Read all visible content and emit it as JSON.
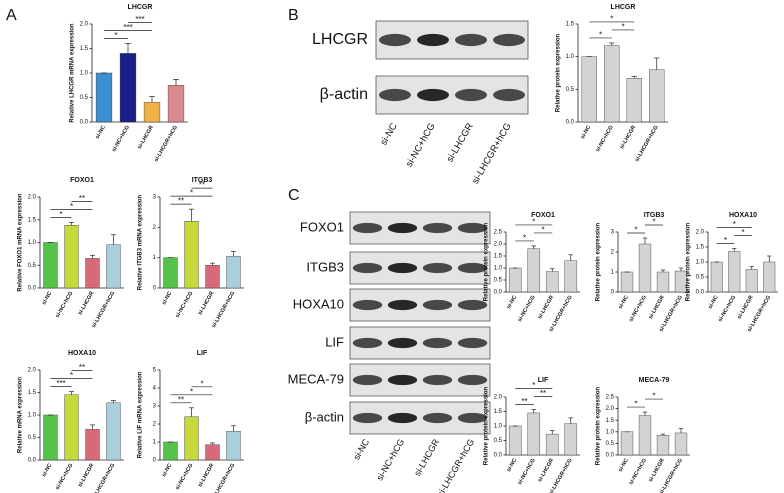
{
  "panel_labels": [
    "A",
    "B",
    "C"
  ],
  "blots": [
    {
      "rows": [
        "LHCGR",
        "β-actin"
      ],
      "lanes": [
        "si-NC",
        "si-NC+hCG",
        "si-LHCGR",
        "si-LHCGR+hCG"
      ]
    },
    {
      "rows": [
        "FOXO1",
        "ITGB3",
        "HOXA10",
        "LIF",
        "MECA-79",
        "β-actin"
      ],
      "lanes": [
        "si-NC",
        "si-NC+hCG",
        "si-LHCGR",
        "si-LHCGR+hCG"
      ]
    }
  ],
  "chart_data": [
    {
      "type": "bar",
      "title": "LHCGR",
      "ylabel": "Relative LHCGR mRNA expression",
      "categories": [
        "si-NC",
        "si-NC+hCG",
        "si-LHCGR",
        "si-LHCGR+hCG"
      ],
      "values": [
        1.0,
        1.4,
        0.4,
        0.75
      ],
      "errors": [
        0,
        0.2,
        0.12,
        0.12
      ],
      "colors": [
        "#3a8fd0",
        "#1c1f8a",
        "#f0b34a",
        "#d98a8e"
      ],
      "ylim": [
        0,
        2
      ],
      "yticks": [
        {
          "value": 0,
          "label": "0.0"
        },
        0.5,
        {
          "value": 1,
          "label": "1.0"
        },
        1.5,
        {
          "value": 2,
          "label": "2.0"
        }
      ],
      "brackets": [
        {
          "label": "*",
          "pair": [
            "si-NC",
            "si-NC+hCG"
          ]
        },
        {
          "label": "***",
          "pair": [
            "si-NC",
            "si-LHCGR"
          ]
        },
        {
          "label": "***",
          "pair": [
            "si-NC+hCG",
            "si-LHCGR"
          ]
        }
      ]
    },
    {
      "type": "bar",
      "title": "FOXO1",
      "ylabel": "Relative FOXO1 mRNA expression",
      "categories": [
        "si-NC",
        "si-NC+hCG",
        "si-LHCGR",
        "si-LHCGR+hCG"
      ],
      "values": [
        1.0,
        1.38,
        0.65,
        0.95
      ],
      "errors": [
        0,
        0.06,
        0.07,
        0.22
      ],
      "colors": [
        "#57c24a",
        "#c6d93a",
        "#d76a78",
        "#a9cfdc"
      ],
      "ylim": [
        0,
        2
      ],
      "yticks": [
        {
          "value": 0,
          "label": "0.0"
        },
        0.5,
        {
          "value": 1,
          "label": "1.0"
        },
        1.5,
        {
          "value": 2,
          "label": "2.0"
        }
      ],
      "brackets": [
        {
          "label": "*",
          "pair": [
            "si-NC",
            "si-NC+hCG"
          ]
        },
        {
          "label": "*",
          "pair": [
            "si-NC",
            "si-LHCGR"
          ]
        },
        {
          "label": "**",
          "pair": [
            "si-NC+hCG",
            "si-LHCGR"
          ]
        }
      ]
    },
    {
      "type": "bar",
      "title": "ITGB3",
      "ylabel": "Relative ITGB3 mRNA expression",
      "categories": [
        "si-NC",
        "si-NC+hCG",
        "si-LHCGR",
        "si-LHCGR+hCG"
      ],
      "values": [
        1.0,
        2.2,
        0.75,
        1.05
      ],
      "errors": [
        0,
        0.4,
        0.07,
        0.15
      ],
      "colors": [
        "#57c24a",
        "#c6d93a",
        "#d76a78",
        "#a9cfdc"
      ],
      "ylim": [
        0,
        3
      ],
      "yticks": [
        0,
        1,
        2,
        3
      ],
      "brackets": [
        {
          "label": "**",
          "pair": [
            "si-NC",
            "si-NC+hCG"
          ]
        },
        {
          "label": "*",
          "pair": [
            "si-NC",
            "si-LHCGR"
          ]
        },
        {
          "label": "**",
          "pair": [
            "si-NC+hCG",
            "si-LHCGR"
          ]
        }
      ]
    },
    {
      "type": "bar",
      "title": "HOXA10",
      "ylabel": "Relative mRNA expression",
      "categories": [
        "si-NC",
        "si-NC+hCG",
        "si-LHCGR",
        "si-LHCGR+hCG"
      ],
      "values": [
        1.0,
        1.45,
        0.68,
        1.27
      ],
      "errors": [
        0,
        0.07,
        0.1,
        0.05
      ],
      "colors": [
        "#57c24a",
        "#c6d93a",
        "#d76a78",
        "#a9cfdc"
      ],
      "ylim": [
        0,
        2
      ],
      "yticks": [
        {
          "value": 0,
          "label": "0.0"
        },
        0.5,
        {
          "value": 1,
          "label": "1.0"
        },
        1.5,
        {
          "value": 2,
          "label": "2.0"
        }
      ],
      "brackets": [
        {
          "label": "***",
          "pair": [
            "si-NC",
            "si-NC+hCG"
          ]
        },
        {
          "label": "*",
          "pair": [
            "si-NC",
            "si-LHCGR"
          ]
        },
        {
          "label": "**",
          "pair": [
            "si-NC+hCG",
            "si-LHCGR"
          ]
        }
      ]
    },
    {
      "type": "bar",
      "title": "LIF",
      "ylabel": "Relative LIF mRNA expression",
      "categories": [
        "si-NC",
        "si-NC+hCG",
        "si-LHCGR",
        "si-LHCGR+hCG"
      ],
      "values": [
        1.0,
        2.4,
        0.85,
        1.6
      ],
      "errors": [
        0,
        0.5,
        0.1,
        0.3
      ],
      "colors": [
        "#57c24a",
        "#c6d93a",
        "#d76a78",
        "#a9cfdc"
      ],
      "ylim": [
        0,
        5
      ],
      "yticks": [
        0,
        1,
        2,
        3,
        4,
        5
      ],
      "brackets": [
        {
          "label": "**",
          "pair": [
            "si-NC",
            "si-NC+hCG"
          ]
        },
        {
          "label": "*",
          "pair": [
            "si-NC",
            "si-LHCGR"
          ]
        },
        {
          "label": "*",
          "pair": [
            "si-NC+hCG",
            "si-LHCGR"
          ]
        }
      ]
    },
    {
      "type": "bar",
      "title": "LHCGR",
      "ylabel": "Relative protein expression",
      "categories": [
        "si-NC",
        "si-NC+hCG",
        "si-LHCGR",
        "si-LHCGR+hCG"
      ],
      "values": [
        1.0,
        1.17,
        0.67,
        0.8
      ],
      "errors": [
        0,
        0.04,
        0.03,
        0.18
      ],
      "colors": [
        "#d3d3d3",
        "#d3d3d3",
        "#d3d3d3",
        "#d3d3d3"
      ],
      "ylim": [
        0,
        1.5
      ],
      "yticks": [
        {
          "value": 0,
          "label": "0.0"
        },
        0.5,
        {
          "value": 1,
          "label": "1.0"
        },
        1.5
      ],
      "brackets": [
        {
          "label": "*",
          "pair": [
            "si-NC",
            "si-NC+hCG"
          ]
        },
        {
          "label": "*",
          "pair": [
            "si-NC+hCG",
            "si-LHCGR"
          ]
        },
        {
          "label": "*",
          "pair": [
            "si-NC",
            "si-LHCGR"
          ]
        }
      ]
    },
    {
      "type": "bar",
      "title": "FOXO1",
      "ylabel": "Relative protein expression",
      "categories": [
        "si-NC",
        "si-NC+hCG",
        "si-LHCGR",
        "si-LHCGR+hCG"
      ],
      "values": [
        1.0,
        1.8,
        0.85,
        1.3
      ],
      "errors": [
        0,
        0.12,
        0.12,
        0.25
      ],
      "colors": [
        "#d3d3d3",
        "#d3d3d3",
        "#d3d3d3",
        "#d3d3d3"
      ],
      "ylim": [
        0,
        2.5
      ],
      "yticks": [
        {
          "value": 0,
          "label": "0.0"
        },
        0.5,
        {
          "value": 1,
          "label": "1.0"
        },
        1.5,
        {
          "value": 2,
          "label": "2.0"
        },
        2.5
      ],
      "brackets": [
        {
          "label": "*",
          "pair": [
            "si-NC",
            "si-NC+hCG"
          ]
        },
        {
          "label": "*",
          "pair": [
            "si-NC+hCG",
            "si-LHCGR"
          ]
        },
        {
          "label": "*",
          "pair": [
            "si-NC",
            "si-LHCGR"
          ]
        }
      ]
    },
    {
      "type": "bar",
      "title": "ITGB3",
      "ylabel": "Relative protein expression",
      "categories": [
        "si-NC",
        "si-NC+hCG",
        "si-LHCGR",
        "si-LHCGR+hCG"
      ],
      "values": [
        1.0,
        2.4,
        1.0,
        1.05
      ],
      "errors": [
        0,
        0.3,
        0.1,
        0.15
      ],
      "colors": [
        "#d3d3d3",
        "#d3d3d3",
        "#d3d3d3",
        "#d3d3d3"
      ],
      "ylim": [
        0,
        3
      ],
      "yticks": [
        0,
        1,
        2,
        3
      ],
      "brackets": [
        {
          "label": "*",
          "pair": [
            "si-NC",
            "si-NC+hCG"
          ]
        },
        {
          "label": "*",
          "pair": [
            "si-NC+hCG",
            "si-LHCGR"
          ]
        }
      ]
    },
    {
      "type": "bar",
      "title": "HOXA10",
      "ylabel": "Relative protein expression",
      "categories": [
        "si-NC",
        "si-NC+hCG",
        "si-LHCGR",
        "si-LHCGR+hCG"
      ],
      "values": [
        1.0,
        1.35,
        0.75,
        1.0
      ],
      "errors": [
        0,
        0.1,
        0.1,
        0.2
      ],
      "colors": [
        "#d3d3d3",
        "#d3d3d3",
        "#d3d3d3",
        "#d3d3d3"
      ],
      "ylim": [
        0,
        2
      ],
      "yticks": [
        {
          "value": 0,
          "label": "0.0"
        },
        0.5,
        {
          "value": 1,
          "label": "1.0"
        },
        1.5,
        {
          "value": 2,
          "label": "2.0"
        }
      ],
      "brackets": [
        {
          "label": "*",
          "pair": [
            "si-NC",
            "si-NC+hCG"
          ]
        },
        {
          "label": "*",
          "pair": [
            "si-NC+hCG",
            "si-LHCGR"
          ]
        },
        {
          "label": "*",
          "pair": [
            "si-NC",
            "si-LHCGR"
          ]
        }
      ]
    },
    {
      "type": "bar",
      "title": "LIF",
      "ylabel": "Relative protein expression",
      "categories": [
        "si-NC",
        "si-NC+hCG",
        "si-LHCGR",
        "si-LHCGR+hCG"
      ],
      "values": [
        1.0,
        1.45,
        0.72,
        1.08
      ],
      "errors": [
        0,
        0.12,
        0.12,
        0.2
      ],
      "colors": [
        "#d3d3d3",
        "#d3d3d3",
        "#d3d3d3",
        "#d3d3d3"
      ],
      "ylim": [
        0,
        2
      ],
      "yticks": [
        {
          "value": 0,
          "label": "0.0"
        },
        0.5,
        {
          "value": 1,
          "label": "1.0"
        },
        1.5,
        {
          "value": 2,
          "label": "2.0"
        }
      ],
      "brackets": [
        {
          "label": "**",
          "pair": [
            "si-NC",
            "si-NC+hCG"
          ]
        },
        {
          "label": "**",
          "pair": [
            "si-NC+hCG",
            "si-LHCGR"
          ]
        },
        {
          "label": "*",
          "pair": [
            "si-NC",
            "si-LHCGR"
          ]
        }
      ]
    },
    {
      "type": "bar",
      "title": "MECA-79",
      "ylabel": "Relative protein expression",
      "categories": [
        "si-NC",
        "si-NC+hCG",
        "si-LHCGR",
        "si-LHCGR+hCG"
      ],
      "values": [
        1.0,
        1.7,
        0.85,
        0.95
      ],
      "errors": [
        0,
        0.15,
        0.05,
        0.2
      ],
      "colors": [
        "#d3d3d3",
        "#d3d3d3",
        "#d3d3d3",
        "#d3d3d3"
      ],
      "ylim": [
        0,
        2.5
      ],
      "yticks": [
        {
          "value": 0,
          "label": "0.0"
        },
        0.5,
        {
          "value": 1,
          "label": "1.0"
        },
        1.5,
        {
          "value": 2,
          "label": "2.0"
        },
        2.5
      ],
      "brackets": [
        {
          "label": "*",
          "pair": [
            "si-NC",
            "si-NC+hCG"
          ]
        },
        {
          "label": "*",
          "pair": [
            "si-NC+hCG",
            "si-LHCGR"
          ]
        }
      ]
    }
  ]
}
